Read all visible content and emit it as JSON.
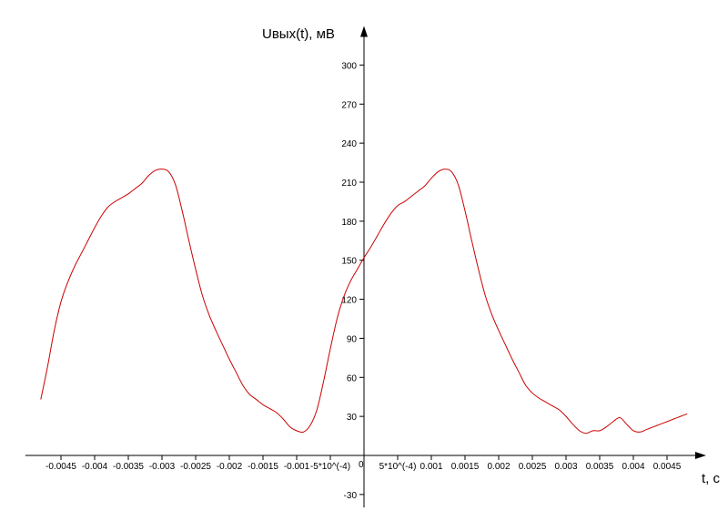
{
  "chart_data": {
    "type": "line",
    "title": "",
    "ylabel": "Uвых(t), мВ",
    "xlabel": "t, c",
    "xlim": [
      -0.00503,
      0.00508
    ],
    "ylim": [
      -40,
      330
    ],
    "grid": false,
    "x_ticks": [
      {
        "value": -0.0045,
        "label": "-0.0045"
      },
      {
        "value": -0.004,
        "label": "-0.004"
      },
      {
        "value": -0.0035,
        "label": "-0.0035"
      },
      {
        "value": -0.003,
        "label": "-0.003"
      },
      {
        "value": -0.0025,
        "label": "-0.0025"
      },
      {
        "value": -0.002,
        "label": "-0.002"
      },
      {
        "value": -0.0015,
        "label": "-0.0015"
      },
      {
        "value": -0.001,
        "label": "-0.001"
      },
      {
        "value": -0.0005,
        "label": "-5*10^(-4)"
      },
      {
        "value": 0.0005,
        "label": "5*10^(-4)"
      },
      {
        "value": 0.001,
        "label": "0.001"
      },
      {
        "value": 0.0015,
        "label": "0.0015"
      },
      {
        "value": 0.002,
        "label": "0.002"
      },
      {
        "value": 0.0025,
        "label": "0.0025"
      },
      {
        "value": 0.003,
        "label": "0.003"
      },
      {
        "value": 0.0035,
        "label": "0.0035"
      },
      {
        "value": 0.004,
        "label": "0.004"
      },
      {
        "value": 0.0045,
        "label": "0.0045"
      }
    ],
    "y_ticks": [
      -30,
      30,
      60,
      90,
      120,
      150,
      180,
      210,
      240,
      270,
      300
    ],
    "origin_label": "0",
    "line_color": "#cc0000",
    "series": [
      {
        "name": "",
        "x": [
          -0.0048,
          -0.0047,
          -0.0046,
          -0.0045,
          -0.0044,
          -0.0043,
          -0.0042,
          -0.0041,
          -0.004,
          -0.0039,
          -0.0038,
          -0.0037,
          -0.0036,
          -0.0035,
          -0.0034,
          -0.0033,
          -0.0032,
          -0.0031,
          -0.003,
          -0.0029,
          -0.0028,
          -0.0027,
          -0.0026,
          -0.0025,
          -0.0024,
          -0.0023,
          -0.0022,
          -0.0021,
          -0.002,
          -0.0019,
          -0.0018,
          -0.0017,
          -0.0016,
          -0.0015,
          -0.0014,
          -0.0013,
          -0.0012,
          -0.0011,
          -0.001,
          -0.0009,
          -0.0008,
          -0.0007,
          -0.0006,
          -0.0005,
          -0.0004,
          -0.0003,
          -0.0002,
          -0.0001,
          0.0,
          0.0001,
          0.0002,
          0.0003,
          0.0004,
          0.0005,
          0.0006,
          0.0007,
          0.0008,
          0.0009,
          0.001,
          0.0011,
          0.0012,
          0.0013,
          0.0014,
          0.0015,
          0.0016,
          0.0017,
          0.0018,
          0.0019,
          0.002,
          0.0021,
          0.0022,
          0.0023,
          0.0024,
          0.0025,
          0.0026,
          0.0027,
          0.0028,
          0.0029,
          0.003,
          0.0031,
          0.0032,
          0.0033,
          0.0034,
          0.0035,
          0.0036,
          0.0037,
          0.0038,
          0.0039,
          0.004,
          0.0041,
          0.0042,
          0.0043,
          0.0044,
          0.0045,
          0.0046,
          0.0047,
          0.0048
        ],
        "y": [
          43,
          68,
          96,
          118,
          133,
          145,
          155,
          165,
          175,
          184,
          191,
          195,
          198,
          201,
          205,
          209,
          215,
          219,
          220,
          218,
          208,
          188,
          165,
          143,
          123,
          108,
          96,
          85,
          74,
          64,
          54,
          47,
          43,
          39,
          36,
          33,
          28,
          22,
          19,
          18,
          23,
          35,
          57,
          82,
          105,
          122,
          134,
          143,
          152,
          160,
          169,
          178,
          186,
          192,
          195,
          199,
          203,
          207,
          213,
          218,
          220,
          218,
          208,
          188,
          165,
          143,
          123,
          108,
          96,
          85,
          74,
          64,
          54,
          48,
          44,
          41,
          38,
          35,
          30,
          24,
          19,
          17,
          19,
          19,
          22,
          26,
          29,
          24,
          19,
          18,
          20,
          22,
          24,
          26,
          28,
          30,
          32
        ]
      }
    ]
  }
}
